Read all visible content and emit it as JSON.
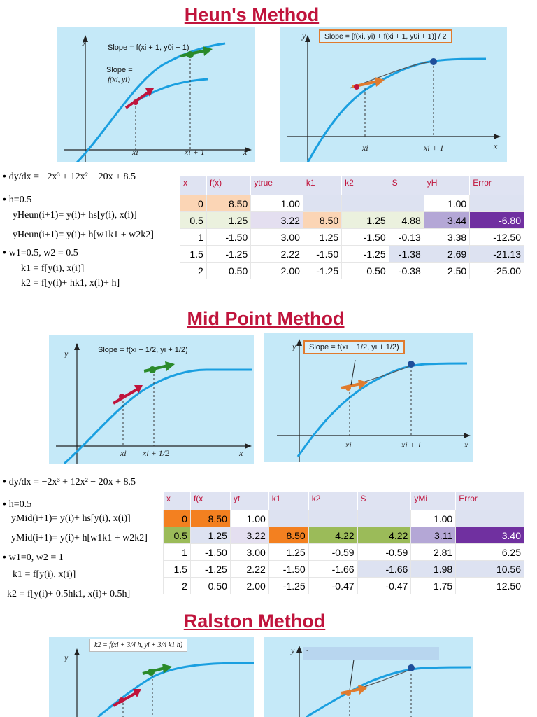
{
  "titles": {
    "heun": "Heun's Method",
    "midpoint": "Mid Point Method",
    "ralston": "Ralston Method"
  },
  "axis": {
    "x": "x",
    "y": "y"
  },
  "graph_labels": {
    "xi": "xi",
    "xi1": "xi + 1",
    "xi_half": "xi + 1/2",
    "slope_left": "Slope =",
    "slope_fxy": "f(xi, yi)"
  },
  "heun": {
    "panel_left_slope": "Slope = f(xi + 1, y0i + 1)",
    "panel_right_slope": "Slope = [f(xi, yi) + f(xi + 1, y0i + 1)] / 2",
    "eq": {
      "ode": "dy/dx = −2x³ + 12x² − 20x + 8.5",
      "h": "h=0.5",
      "line1": "yHeun(i+1)= y(i)+ hs[y(i), x(i)]",
      "line2": "yHeun(i+1)= y(i)+ h[w1k1 + w2k2]",
      "weights": "w1=0.5, w2 = 0.5",
      "k1": "k1 = f[y(i), x(i)]",
      "k2": "k2 = f[y(i)+ hk1, x(i)+ h]"
    },
    "table": {
      "headers": [
        "x",
        "f(x)",
        "ytrue",
        "k1",
        "k2",
        "S",
        "yH",
        "Error"
      ],
      "rows": [
        [
          "0",
          "8.50",
          "1.00",
          "",
          "",
          "",
          "1.00",
          ""
        ],
        [
          "0.5",
          "1.25",
          "3.22",
          "8.50",
          "1.25",
          "4.88",
          "3.44",
          "-6.80"
        ],
        [
          "1",
          "-1.50",
          "3.00",
          "1.25",
          "-1.50",
          "-0.13",
          "3.38",
          "-12.50"
        ],
        [
          "1.5",
          "-1.25",
          "2.22",
          "-1.50",
          "-1.25",
          "-1.38",
          "2.69",
          "-21.13"
        ],
        [
          "2",
          "0.50",
          "2.00",
          "-1.25",
          "0.50",
          "-0.38",
          "2.50",
          "-25.00"
        ]
      ]
    }
  },
  "midpoint": {
    "panel_left_slope": "Slope = f(xi + 1/2, yi + 1/2)",
    "panel_right_slope": "Slope = f(xi + 1/2, yi + 1/2)",
    "eq": {
      "ode": "dy/dx = −2x³ + 12x² − 20x + 8.5",
      "h": "h=0.5",
      "line1": "yMid(i+1)= y(i)+ hs[y(i), x(i)]",
      "line2": "yMid(i+1)= y(i)+ h[w1k1 + w2k2]",
      "weights": "w1=0, w2 = 1",
      "k1": "k1 = f[y(i), x(i)]",
      "k2": "k2 = f[y(i)+ 0.5hk1, x(i)+ 0.5h]"
    },
    "table": {
      "headers": [
        "x",
        "f(x",
        "yt",
        "k1",
        "k2",
        "S",
        "yMi",
        "Error"
      ],
      "rows": [
        [
          "0",
          "8.50",
          "1.00",
          "",
          "",
          "",
          "1.00",
          ""
        ],
        [
          "0.5",
          "1.25",
          "3.22",
          "8.50",
          "4.22",
          "4.22",
          "3.11",
          "3.40"
        ],
        [
          "1",
          "-1.50",
          "3.00",
          "1.25",
          "-0.59",
          "-0.59",
          "2.81",
          "6.25"
        ],
        [
          "1.5",
          "-1.25",
          "2.22",
          "-1.50",
          "-1.66",
          "-1.66",
          "1.98",
          "10.56"
        ],
        [
          "2",
          "0.50",
          "2.00",
          "-1.25",
          "-0.47",
          "-0.47",
          "1.75",
          "12.50"
        ]
      ]
    }
  },
  "ralston": {
    "panel_left_formula": "k2 = f(xi + 3/4 h, yi + 3/4 k1 h)",
    "panel_right_box": "-"
  }
}
